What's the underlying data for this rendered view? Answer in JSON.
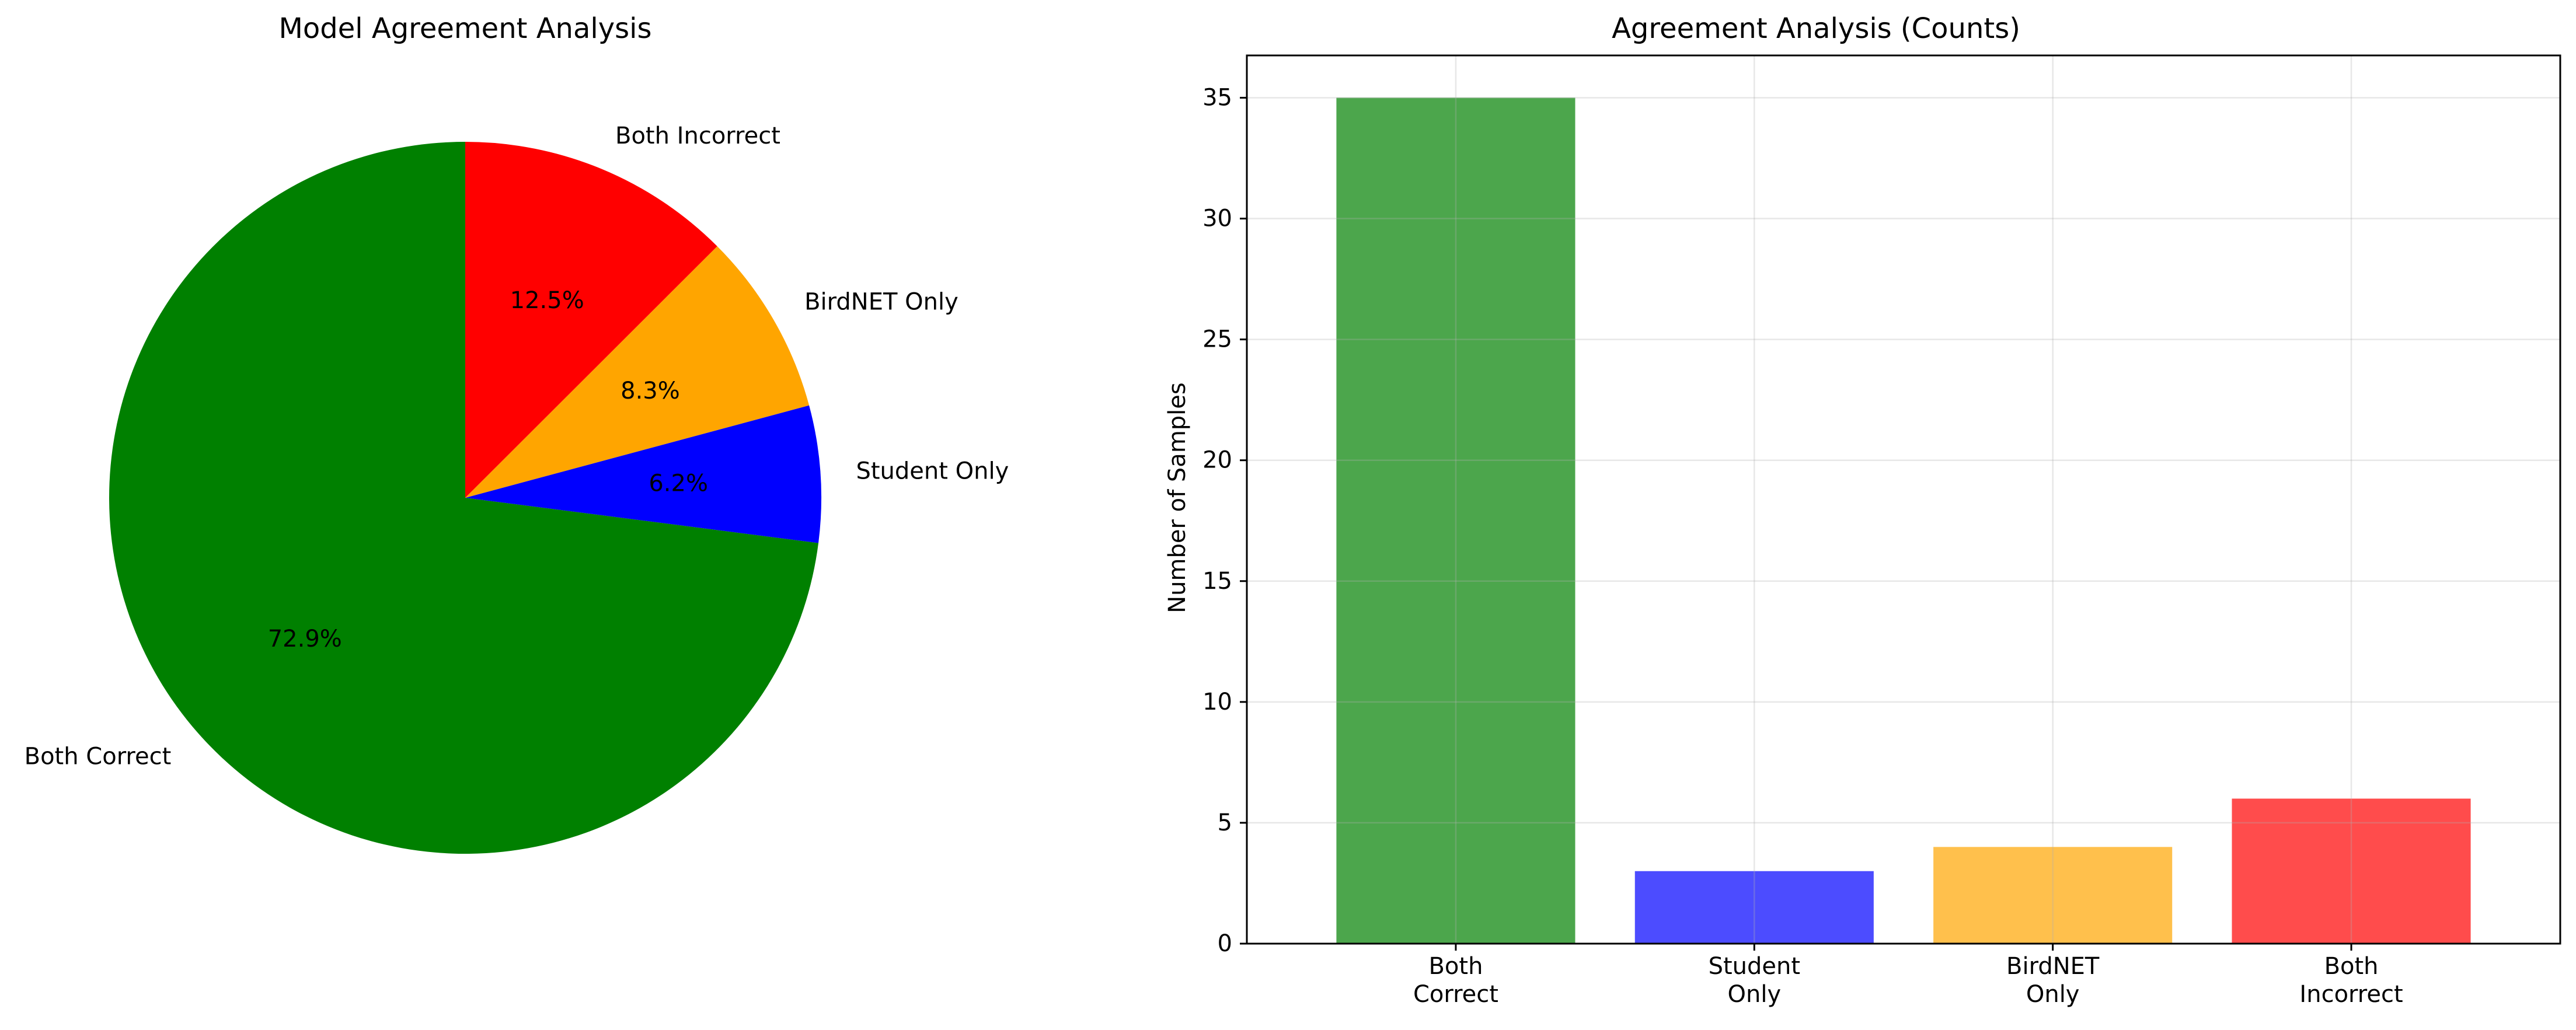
{
  "chart_data": [
    {
      "type": "pie",
      "title": "Model Agreement Analysis",
      "start_angle_deg": 90,
      "direction": "counterclockwise",
      "slices": [
        {
          "label": "Both Correct",
          "value": 72.9,
          "pct_label": "72.9%",
          "color": "#008000"
        },
        {
          "label": "Student Only",
          "value": 6.2,
          "pct_label": "6.2%",
          "color": "#0000ff"
        },
        {
          "label": "BirdNET Only",
          "value": 8.3,
          "pct_label": "8.3%",
          "color": "#ffa500"
        },
        {
          "label": "Both Incorrect",
          "value": 12.5,
          "pct_label": "12.5%",
          "color": "#ff0000"
        }
      ]
    },
    {
      "type": "bar",
      "title": "Agreement Analysis (Counts)",
      "xlabel": "",
      "ylabel": "Number of Samples",
      "categories": [
        [
          "Both",
          "Correct"
        ],
        [
          "Student",
          "Only"
        ],
        [
          "BirdNET",
          "Only"
        ],
        [
          "Both",
          "Incorrect"
        ]
      ],
      "values": [
        35,
        3,
        4,
        6
      ],
      "colors": [
        "#008000",
        "#0000ff",
        "#ffa500",
        "#ff0000"
      ],
      "bar_opacity": 0.7,
      "ylim": [
        0,
        36.75
      ],
      "yticks": [
        0,
        5,
        10,
        15,
        20,
        25,
        30,
        35
      ],
      "grid": true
    }
  ]
}
